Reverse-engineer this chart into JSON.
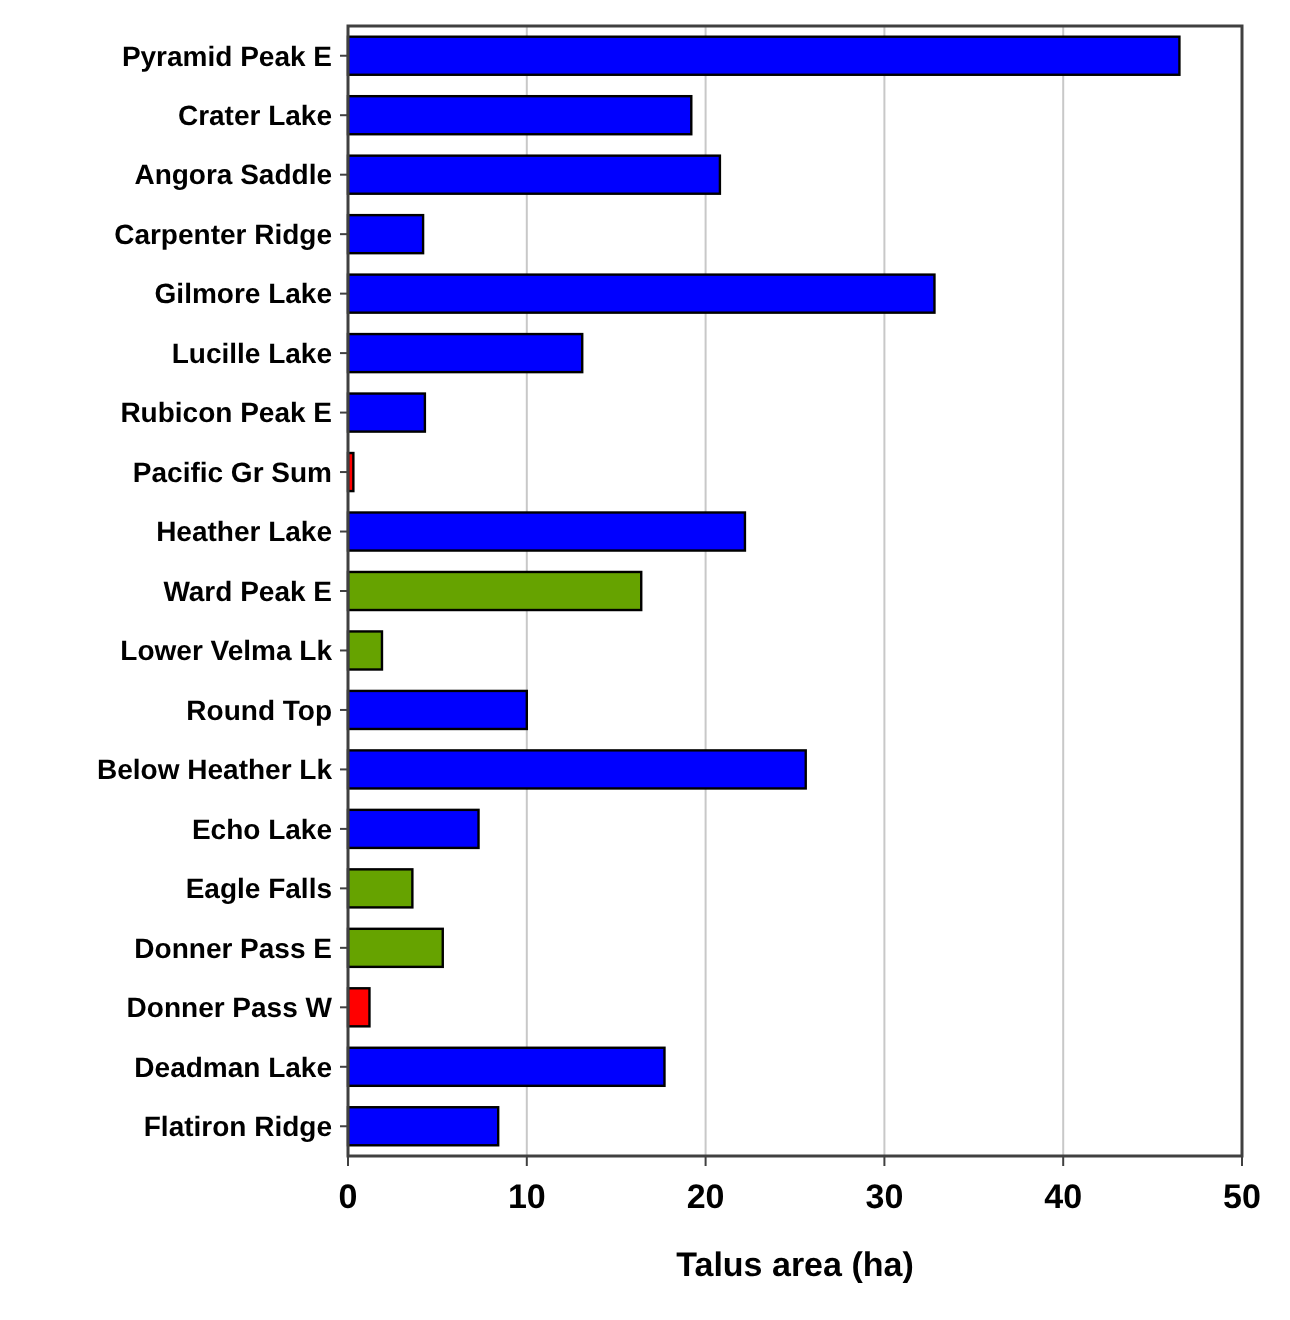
{
  "chart_data": {
    "type": "bar",
    "orientation": "horizontal",
    "xlabel": "Talus area (ha)",
    "categories": [
      "Pyramid Peak E",
      "Crater Lake",
      "Angora Saddle",
      "Carpenter Ridge",
      "Gilmore Lake",
      "Lucille Lake",
      "Rubicon Peak E",
      "Pacific Gr Sum",
      "Heather Lake",
      "Ward Peak E",
      "Lower Velma Lk",
      "Round Top",
      "Below Heather Lk",
      "Echo Lake",
      "Eagle Falls",
      "Donner Pass E",
      "Donner Pass W",
      "Deadman Lake",
      "Flatiron Ridge"
    ],
    "values": [
      46.5,
      19.2,
      20.8,
      4.2,
      32.8,
      13.1,
      4.3,
      0.3,
      22.2,
      16.4,
      1.9,
      10.0,
      25.6,
      7.3,
      3.6,
      5.3,
      1.2,
      17.7,
      8.4
    ],
    "colors": [
      "#0000ff",
      "#0000ff",
      "#0000ff",
      "#0000ff",
      "#0000ff",
      "#0000ff",
      "#0000ff",
      "#ff0000",
      "#0000ff",
      "#66a300",
      "#66a300",
      "#0000ff",
      "#0000ff",
      "#0000ff",
      "#66a300",
      "#66a300",
      "#ff0000",
      "#0000ff",
      "#0000ff"
    ],
    "xlim": [
      0,
      50
    ],
    "xticks": [
      0,
      10,
      20,
      30,
      40,
      50
    ],
    "grid": "x"
  }
}
